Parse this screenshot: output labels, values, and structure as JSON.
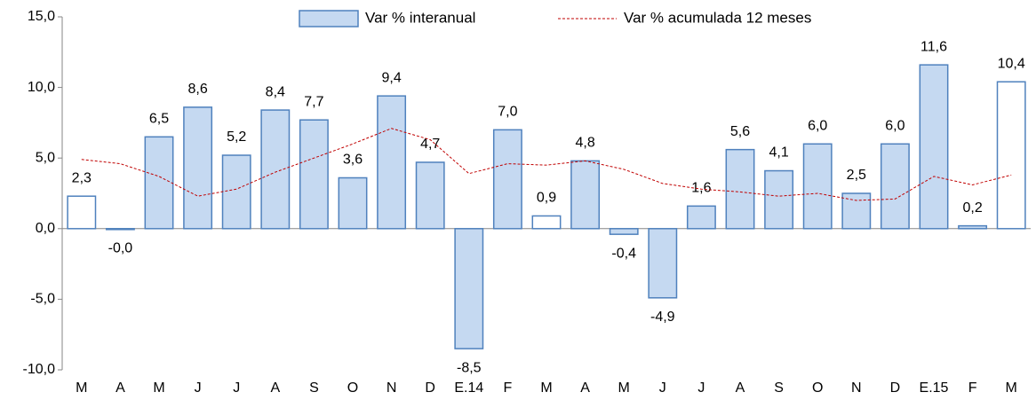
{
  "chart_data": {
    "type": "bar",
    "categories": [
      "M",
      "A",
      "M",
      "J",
      "J",
      "A",
      "S",
      "O",
      "N",
      "D",
      "E.14",
      "F",
      "M",
      "A",
      "M",
      "J",
      "J",
      "A",
      "S",
      "O",
      "N",
      "D",
      "E.15",
      "F",
      "M"
    ],
    "series": [
      {
        "name": "Var % interanual",
        "type": "bar",
        "color": "#c5d9f1",
        "edge_color": "#4f81bd",
        "colors": [
          "#ffffff",
          "#c5d9f1",
          "#c5d9f1",
          "#c5d9f1",
          "#c5d9f1",
          "#c5d9f1",
          "#c5d9f1",
          "#c5d9f1",
          "#c5d9f1",
          "#c5d9f1",
          "#c5d9f1",
          "#c5d9f1",
          "#ffffff",
          "#c5d9f1",
          "#c5d9f1",
          "#c5d9f1",
          "#c5d9f1",
          "#c5d9f1",
          "#c5d9f1",
          "#c5d9f1",
          "#c5d9f1",
          "#c5d9f1",
          "#c5d9f1",
          "#c5d9f1",
          "#ffffff"
        ],
        "values": [
          2.3,
          -0.04,
          6.5,
          8.6,
          5.2,
          8.4,
          7.7,
          3.6,
          9.4,
          4.7,
          -8.5,
          7.0,
          0.9,
          4.8,
          -0.4,
          -4.9,
          1.6,
          5.6,
          4.1,
          6.0,
          2.5,
          6.0,
          11.6,
          0.2,
          10.4
        ],
        "value_labels": [
          "2,3",
          "-0,0",
          "6,5",
          "8,6",
          "5,2",
          "8,4",
          "7,7",
          "3,6",
          "9,4",
          "4,7",
          "-8,5",
          "7,0",
          "0,9",
          "4,8",
          "-0,4",
          "-4,9",
          "1,6",
          "5,6",
          "4,1",
          "6,0",
          "2,5",
          "6,0",
          "11,6",
          "0,2",
          "10,4"
        ]
      },
      {
        "name": "Var % acumulada 12 meses",
        "type": "line",
        "color": "#c00000",
        "dashed": true,
        "values": [
          4.9,
          4.6,
          3.7,
          2.3,
          2.8,
          4.0,
          5.0,
          6.0,
          7.1,
          6.3,
          3.9,
          4.6,
          4.5,
          4.8,
          4.2,
          3.2,
          2.8,
          2.6,
          2.3,
          2.5,
          2.0,
          2.1,
          3.7,
          3.1,
          3.8
        ]
      }
    ],
    "ylim": [
      -10,
      15
    ],
    "yticks": [
      {
        "value": -10,
        "label": "-10,0"
      },
      {
        "value": -5,
        "label": "-5,0"
      },
      {
        "value": 0,
        "label": "0,0"
      },
      {
        "value": 5,
        "label": "5,0"
      },
      {
        "value": 10,
        "label": "10,0"
      },
      {
        "value": 15,
        "label": "15,0"
      }
    ],
    "grid": false,
    "legend": "top"
  }
}
